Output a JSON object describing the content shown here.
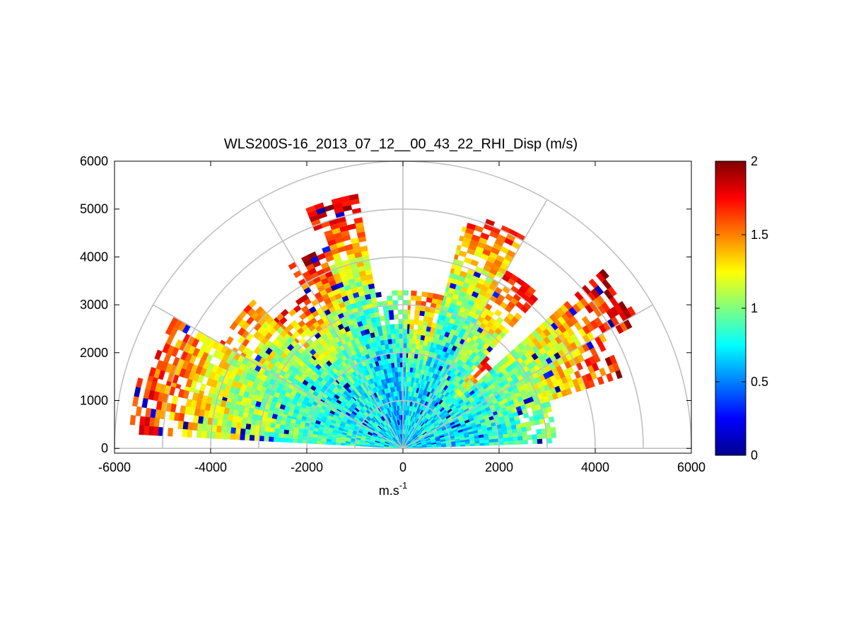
{
  "chart_data": {
    "type": "heatmap",
    "projection": "polar-rhi",
    "title": "WLS200S-16_2013_07_12__00_43_22_RHI_Disp (m/s)",
    "xlabel": "m.s",
    "xlabel_superscript": "-1",
    "ylabel": "",
    "xlim": [
      -6000,
      6000
    ],
    "ylim": [
      -100,
      6000
    ],
    "xticks": [
      -6000,
      -4000,
      -2000,
      0,
      2000,
      4000,
      6000
    ],
    "yticks": [
      0,
      1000,
      2000,
      3000,
      4000,
      5000,
      6000
    ],
    "grid": true,
    "polar_grid_ranges": [
      1000,
      2000,
      3000,
      4000,
      5000,
      6000
    ],
    "polar_grid_angles_deg": [
      0,
      30,
      60,
      90,
      120,
      150,
      180
    ],
    "colorbar": {
      "colormap": "jet",
      "range": [
        0,
        2
      ],
      "ticks": [
        0,
        0.5,
        1,
        1.5,
        2
      ],
      "placement": "right"
    },
    "data_summary": {
      "quantity": "Disp (m/s)",
      "elevation_range_deg": [
        0,
        180
      ],
      "max_range_m": 6000,
      "notes": "Gaps with no data near elevation 45 deg, 75-83 deg, 97-103 deg and 130-135 deg"
    },
    "sectors": [
      {
        "el_deg": [
          2,
          18
        ],
        "range_m": [
          0,
          3200
        ],
        "value_near": 0.65,
        "value_far": 1.1
      },
      {
        "el_deg": [
          18,
          28
        ],
        "range_m": [
          0,
          4800
        ],
        "value_near": 0.7,
        "value_far": 1.85
      },
      {
        "el_deg": [
          28,
          42
        ],
        "range_m": [
          0,
          5600
        ],
        "value_near": 0.75,
        "value_far": 1.95
      },
      {
        "el_deg": [
          42,
          48
        ],
        "range_m": [
          0,
          2600
        ],
        "value_near": 0.6,
        "value_far": 1.9
      },
      {
        "el_deg": [
          48,
          60
        ],
        "range_m": [
          0,
          4300
        ],
        "value_near": 0.7,
        "value_far": 1.8
      },
      {
        "el_deg": [
          60,
          75
        ],
        "range_m": [
          0,
          5100
        ],
        "value_near": 0.65,
        "value_far": 1.7
      },
      {
        "el_deg": [
          75,
          88
        ],
        "range_m": [
          0,
          3300
        ],
        "value_near": 0.7,
        "value_far": 1.6
      },
      {
        "el_deg": [
          88,
          100
        ],
        "range_m": [
          0,
          3300
        ],
        "value_near": 0.55,
        "value_far": 1.2
      },
      {
        "el_deg": [
          100,
          112
        ],
        "range_m": [
          0,
          5400
        ],
        "value_near": 0.6,
        "value_far": 1.95
      },
      {
        "el_deg": [
          112,
          122
        ],
        "range_m": [
          0,
          4500
        ],
        "value_near": 0.7,
        "value_far": 1.9
      },
      {
        "el_deg": [
          122,
          135
        ],
        "range_m": [
          0,
          3800
        ],
        "value_near": 0.7,
        "value_far": 1.7
      },
      {
        "el_deg": [
          135,
          150
        ],
        "range_m": [
          0,
          4400
        ],
        "value_near": 0.7,
        "value_far": 1.6
      },
      {
        "el_deg": [
          150,
          165
        ],
        "range_m": [
          0,
          5500
        ],
        "value_near": 0.75,
        "value_far": 1.7
      },
      {
        "el_deg": [
          165,
          177
        ],
        "range_m": [
          0,
          5700
        ],
        "value_near": 0.8,
        "value_far": 1.8
      }
    ]
  }
}
